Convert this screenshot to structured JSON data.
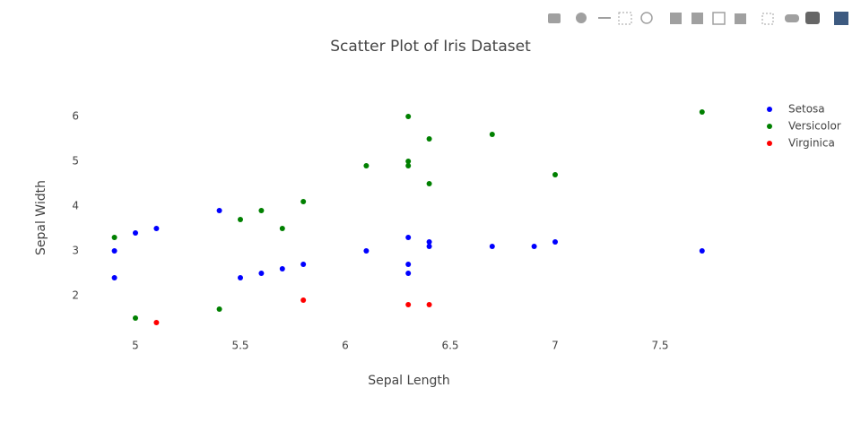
{
  "chart_data": {
    "type": "scatter",
    "title": "Scatter Plot of Iris Dataset",
    "x_label": "Sepal Length",
    "y_label": "Sepal Width",
    "xlim": [
      4.8,
      7.8
    ],
    "ylim": [
      1.1,
      6.3
    ],
    "xticks": [
      5,
      5.5,
      6,
      6.5,
      7,
      7.5
    ],
    "yticks": [
      2,
      3,
      4,
      5,
      6
    ],
    "grid": false,
    "legend": "top-right",
    "series": [
      {
        "name": "Setosa",
        "color": "#0000ff",
        "x": [
          4.9,
          4.9,
          5.0,
          5.1,
          5.4,
          5.5,
          5.6,
          5.7,
          5.8,
          6.1,
          6.3,
          6.3,
          6.3,
          6.4,
          6.4,
          6.7,
          6.9,
          7.0,
          7.7
        ],
        "values": [
          3.0,
          2.4,
          3.4,
          3.5,
          3.9,
          2.4,
          2.5,
          2.6,
          2.7,
          3.0,
          3.3,
          2.7,
          2.5,
          3.2,
          3.1,
          3.1,
          3.1,
          3.2,
          3.0
        ]
      },
      {
        "name": "Versicolor",
        "color": "#008000",
        "x": [
          4.9,
          5.0,
          5.4,
          5.5,
          5.6,
          5.7,
          5.8,
          6.1,
          6.3,
          6.3,
          6.3,
          6.4,
          6.4,
          6.7,
          7.0,
          7.7
        ],
        "values": [
          3.3,
          1.5,
          1.7,
          3.7,
          3.9,
          3.5,
          4.1,
          4.9,
          6.0,
          5.0,
          4.9,
          5.5,
          4.5,
          5.6,
          4.7,
          6.1
        ]
      },
      {
        "name": "Virginica",
        "color": "#ff0000",
        "x": [
          5.1,
          5.8,
          6.3,
          6.4
        ],
        "values": [
          1.4,
          1.9,
          1.8,
          1.8
        ]
      }
    ]
  }
}
